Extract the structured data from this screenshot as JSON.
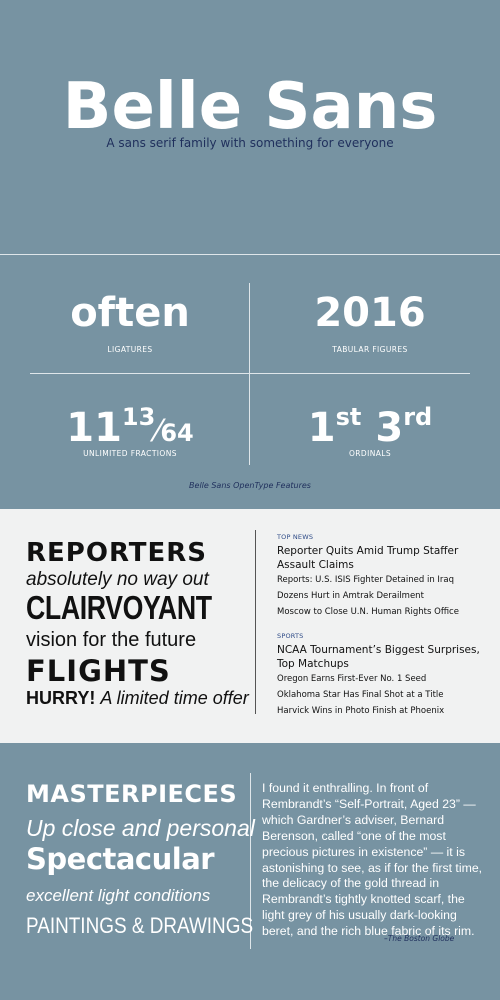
{
  "header": {
    "title": "Belle Sans",
    "subtitle": "A sans serif family with something for everyone"
  },
  "features": {
    "ligatures": {
      "word": "often",
      "label": "LIGATURES"
    },
    "tabular": {
      "word": "2016",
      "label": "TABULAR FIGURES"
    },
    "fractions": {
      "whole": "11",
      "num": "13",
      "den": "64",
      "label": "UNLIMITED FRACTIONS"
    },
    "ordinals": {
      "first_num": "1",
      "first_sup": "st",
      "third_num": "3",
      "third_sup": "rd",
      "label": "ORDINALS"
    },
    "caption": "Belle Sans OpenType Features"
  },
  "specimen": {
    "reporters": "REPORTERS",
    "absolutely": "absolutely no way out",
    "clairvoyant": "CLAIRVOYANT",
    "vision": "vision for the future",
    "flights": "FLIGHTS",
    "hurry": "HURRY!",
    "hurry_rest": "A limited time offer"
  },
  "news": {
    "top_category": "TOP NEWS",
    "top_headline": "Reporter Quits Amid Trump Staffer Assault Claims",
    "top_items": [
      "Reports: U.S. ISIS Fighter Detained in Iraq",
      "Dozens Hurt in Amtrak Derailment",
      "Moscow to Close U.N. Human Rights Office"
    ],
    "sports_category": "SPORTS",
    "sports_headline": "NCAA Tournament’s Biggest Surprises, Top Matchups",
    "sports_items": [
      "Oregon Earns First-Ever No. 1 Seed",
      "Oklahoma Star Has Final Shot at a Title",
      "Harvick Wins in Photo Finish at Phoenix"
    ]
  },
  "bottom": {
    "masterpieces": "MASTERPIECES",
    "upclose": "Up close and personal",
    "spectacular": "Spectacular",
    "excellent": "excellent light conditions",
    "paintings": "PAINTINGS & DRAWINGS",
    "quote": "I found it enthralling. In front of Rembrandt’s “Self-Portrait, Aged 23” — which Gardner’s adviser, Bernard Berenson, called “one of the most precious pictures in existence” — it is astonishing to see, as if for the first time, the delicacy of the gold thread in Rembrandt’s tightly knotted scarf, the light grey of his usually dark-looking beret, and the rich blue fabric of its rim.",
    "source": "–The Boston Globe"
  },
  "colors": {
    "background": "#7793a2",
    "panel": "#f1f2f2",
    "navy": "#1f2f5c",
    "news_category": "#2d4a86"
  }
}
